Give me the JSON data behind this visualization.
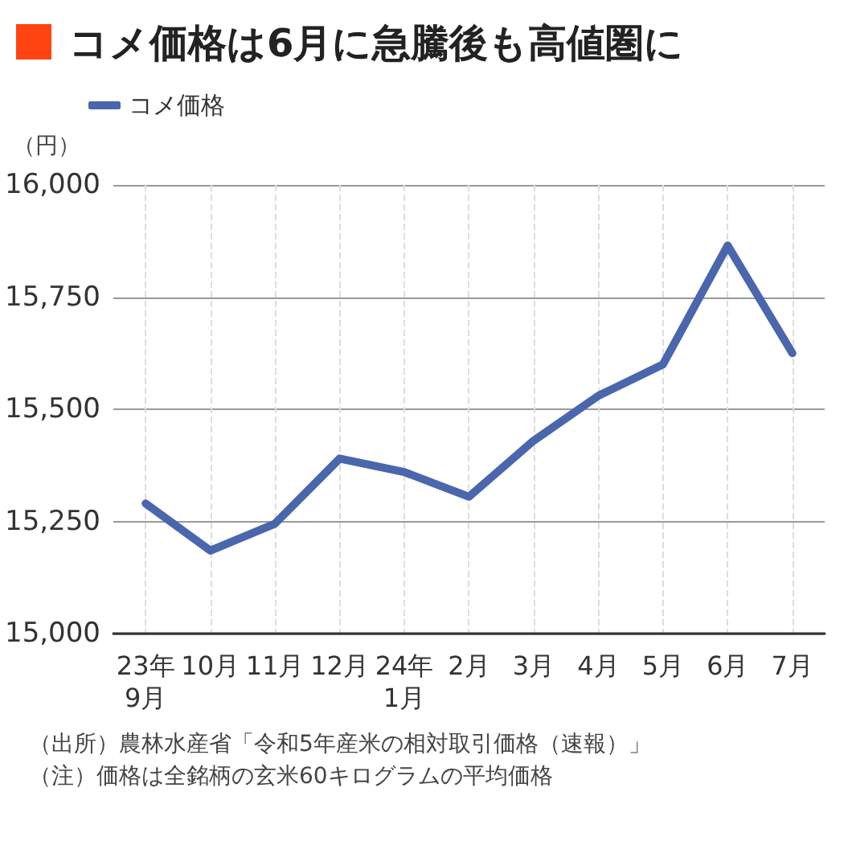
{
  "chart_data": {
    "type": "line",
    "title": "コメ価格は6月に急騰後も高値圏に",
    "ylabel": "（円）",
    "categories": [
      "23年\n9月",
      "10月",
      "11月",
      "12月",
      "24年\n1月",
      "2月",
      "3月",
      "4月",
      "5月",
      "6月",
      "7月"
    ],
    "series": [
      {
        "name": "コメ価格",
        "color": "#4a66ac",
        "values": [
          15290,
          15185,
          15245,
          15390,
          15360,
          15305,
          15430,
          15530,
          15600,
          15865,
          15625
        ]
      }
    ],
    "ylim": [
      15000,
      16000
    ],
    "yticks": [
      {
        "value": 15000,
        "label": "15,000"
      },
      {
        "value": 15250,
        "label": "15,250"
      },
      {
        "value": 15500,
        "label": "15,500"
      },
      {
        "value": 15750,
        "label": "15,750"
      },
      {
        "value": 16000,
        "label": "16,000"
      }
    ],
    "grid": true,
    "legend": "top left",
    "marker": "none",
    "line_style": "solid",
    "annotations": [
      "（出所）農林水産省「令和5年産米の相対取引価格（速報）」",
      "（注）価格は全銘柄の玄米60キログラムの平均価格"
    ]
  }
}
